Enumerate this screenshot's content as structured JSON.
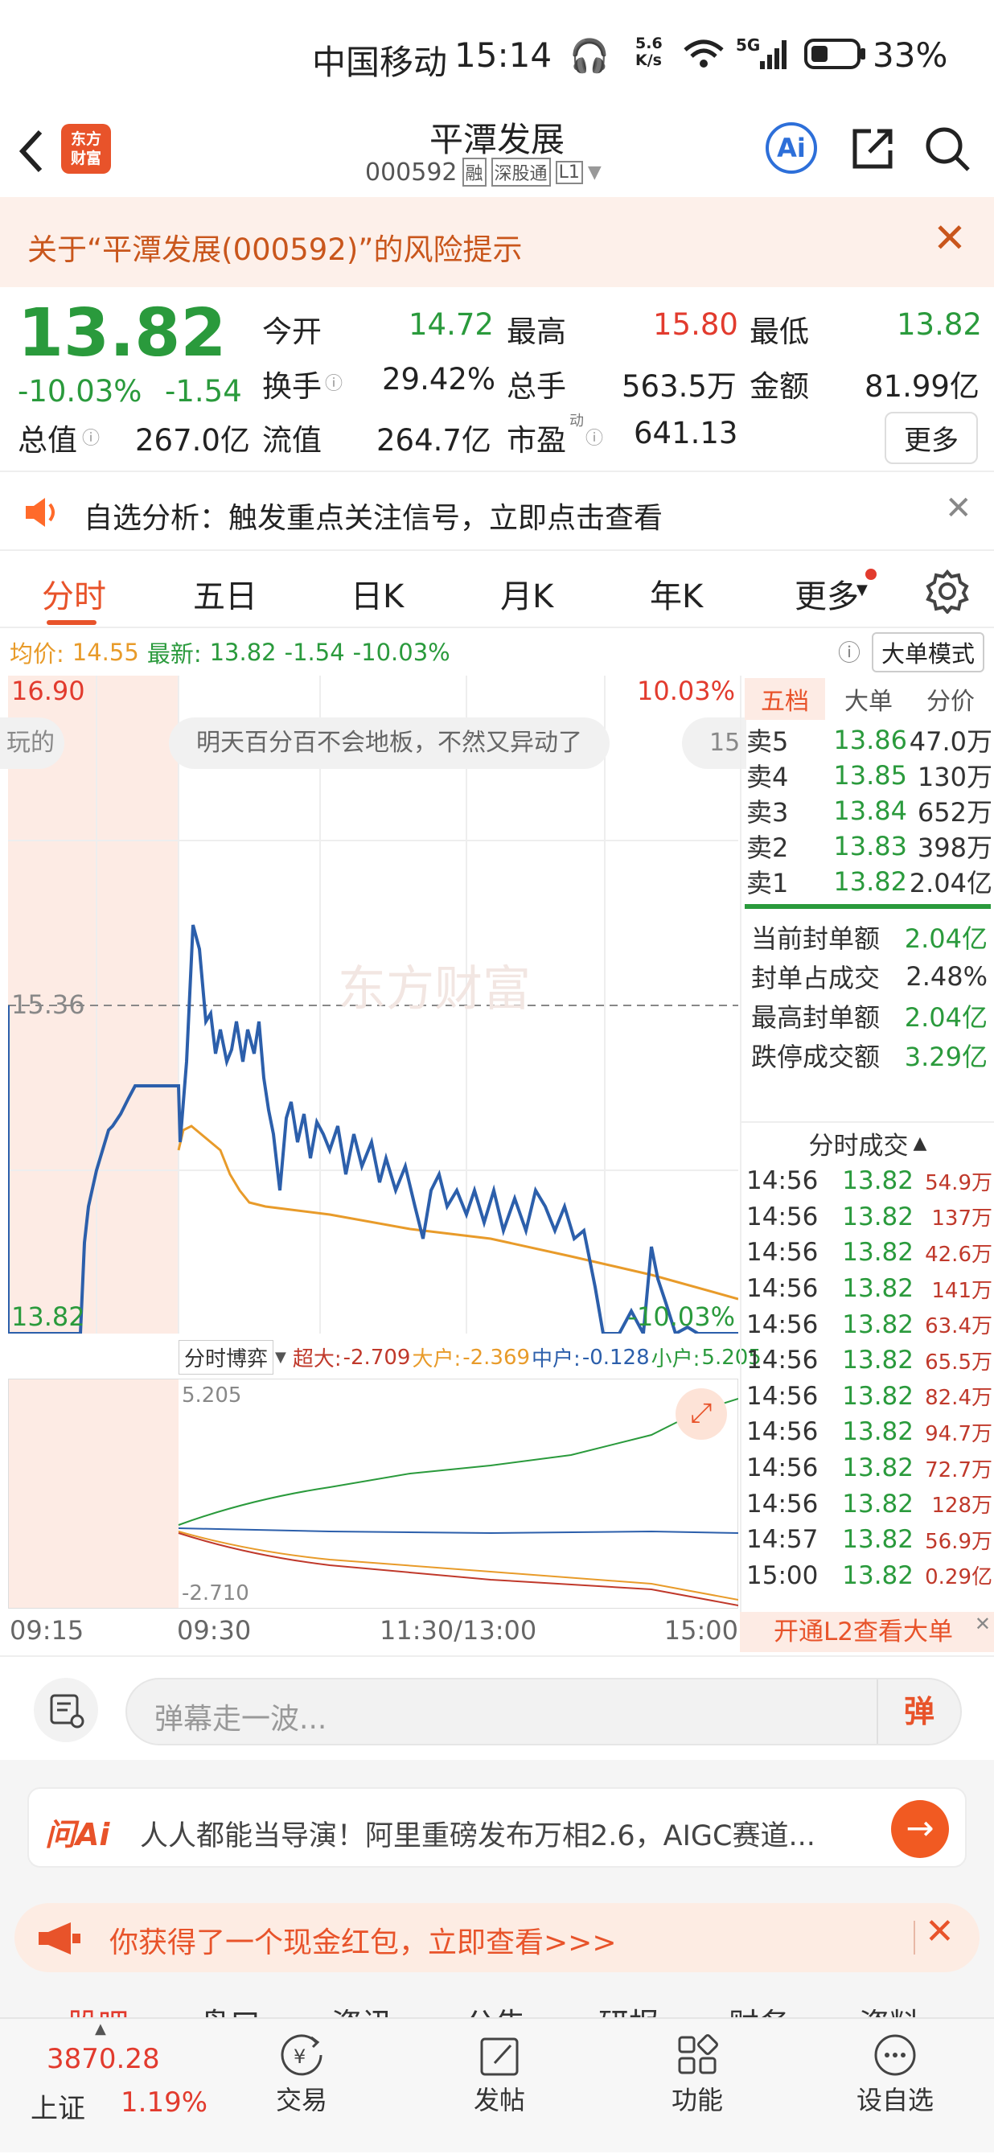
{
  "status": {
    "carrier": "中国移动",
    "time": "15:14",
    "net_speed": "5.6\nK/s",
    "battery": "33%",
    "signal": "5G"
  },
  "header": {
    "logo": "东方\n财富",
    "title": "平潭发展",
    "code": "000592",
    "tag_rong": "融",
    "tag_sgt": "深股通",
    "tag_l1": "L1",
    "ai": "Ai"
  },
  "risk": {
    "text": "关于“平潭发展(000592)”的风险提示"
  },
  "quote": {
    "price": "13.82",
    "pct": "-10.03%",
    "chg": "-1.54",
    "open_label": "今开",
    "open": "14.72",
    "high_label": "最高",
    "high": "15.80",
    "low_label": "最低",
    "low": "13.82",
    "turnover_label": "换手",
    "turnover": "29.42%",
    "vol_label": "总手",
    "vol": "563.5万",
    "amount_label": "金额",
    "amount": "81.99亿",
    "mcap_label": "总值",
    "mcap": "267.0亿",
    "float_label": "流值",
    "float": "264.7亿",
    "pe_label": "市盈",
    "pe_sup": "动",
    "pe": "641.13",
    "more": "更多"
  },
  "notice": {
    "text": "自选分析：触发重点关注信号，立即点击查看"
  },
  "tabs": [
    "分时",
    "五日",
    "日K",
    "月K",
    "年K",
    "更多"
  ],
  "info": {
    "avg_label": "均价:",
    "avg": "14.55",
    "latest_label": "最新:",
    "latest": "13.82",
    "chg": "-1.54",
    "pct": "-10.03%",
    "bigmode": "大单模式"
  },
  "chart": {
    "top_left": "16.90",
    "top_right": "10.03%",
    "mid_left": "15.36",
    "bot_left": "13.82",
    "bot_right": "-10.03%",
    "danmu1": "明天百分百不会地板，不然又异动了",
    "danmu_left": "玩的",
    "danmu_right": "15",
    "watermark": "东方财富"
  },
  "chart_data": {
    "type": "line",
    "x": [
      "09:15",
      "09:30",
      "11:30/13:00",
      "15:00"
    ],
    "ylim": [
      13.82,
      16.9
    ],
    "series": []
  },
  "flow": {
    "selector": "分时博弈",
    "super_label": "超大:",
    "super": "-2.709",
    "big_label": "大户:",
    "big": "-2.369",
    "mid_label": "中户:",
    "mid": "-0.128",
    "small_label": "小户:",
    "small": "5.205",
    "top": "5.205",
    "bottom": "-2.710"
  },
  "xaxis": [
    "09:15",
    "09:30",
    "11:30/13:00",
    "15:00"
  ],
  "level": {
    "tabs": [
      "五档",
      "大单",
      "分价"
    ],
    "rows": [
      {
        "l": "卖5",
        "p": "13.86",
        "v": "47.0万"
      },
      {
        "l": "卖4",
        "p": "13.85",
        "v": "130万"
      },
      {
        "l": "卖3",
        "p": "13.84",
        "v": "652万"
      },
      {
        "l": "卖2",
        "p": "13.83",
        "v": "398万"
      },
      {
        "l": "卖1",
        "p": "13.82",
        "v": "2.04亿"
      }
    ]
  },
  "seal": [
    {
      "l": "当前封单额",
      "v": "2.04亿"
    },
    {
      "l": "封单占成交",
      "v": "2.48%"
    },
    {
      "l": "最高封单额",
      "v": "2.04亿"
    },
    {
      "l": "跌停成交额",
      "v": "3.29亿"
    }
  ],
  "trades_title": "分时成交",
  "trades": [
    {
      "t": "14:56",
      "p": "13.82",
      "v": "54.9万"
    },
    {
      "t": "14:56",
      "p": "13.82",
      "v": "137万"
    },
    {
      "t": "14:56",
      "p": "13.82",
      "v": "42.6万"
    },
    {
      "t": "14:56",
      "p": "13.82",
      "v": "141万"
    },
    {
      "t": "14:56",
      "p": "13.82",
      "v": "63.4万"
    },
    {
      "t": "14:56",
      "p": "13.82",
      "v": "65.5万"
    },
    {
      "t": "14:56",
      "p": "13.82",
      "v": "82.4万"
    },
    {
      "t": "14:56",
      "p": "13.82",
      "v": "94.7万"
    },
    {
      "t": "14:56",
      "p": "13.82",
      "v": "72.7万"
    },
    {
      "t": "14:56",
      "p": "13.82",
      "v": "128万"
    },
    {
      "t": "14:57",
      "p": "13.82",
      "v": "56.9万"
    },
    {
      "t": "15:00",
      "p": "13.82",
      "v": "0.29亿"
    }
  ],
  "l2": "开通L2查看大单",
  "comment": {
    "placeholder": "弹幕走一波...",
    "danmu_btn": "弹"
  },
  "ai_banner": {
    "logo": "问Ai",
    "text": "人人都能当导演！阿里重磅发布万相2.6，AIGC赛道..."
  },
  "redpack": {
    "text": "你获得了一个现金红包，立即查看>>>"
  },
  "subtabs": [
    "股吧",
    "盘口",
    "资讯",
    "公告",
    "研报",
    "财务",
    "资料"
  ],
  "nav": {
    "index_value": "3870.28",
    "index_name": "上证",
    "index_pct": "1.19%",
    "items": [
      "交易",
      "发帖",
      "功能",
      "设自选"
    ]
  }
}
